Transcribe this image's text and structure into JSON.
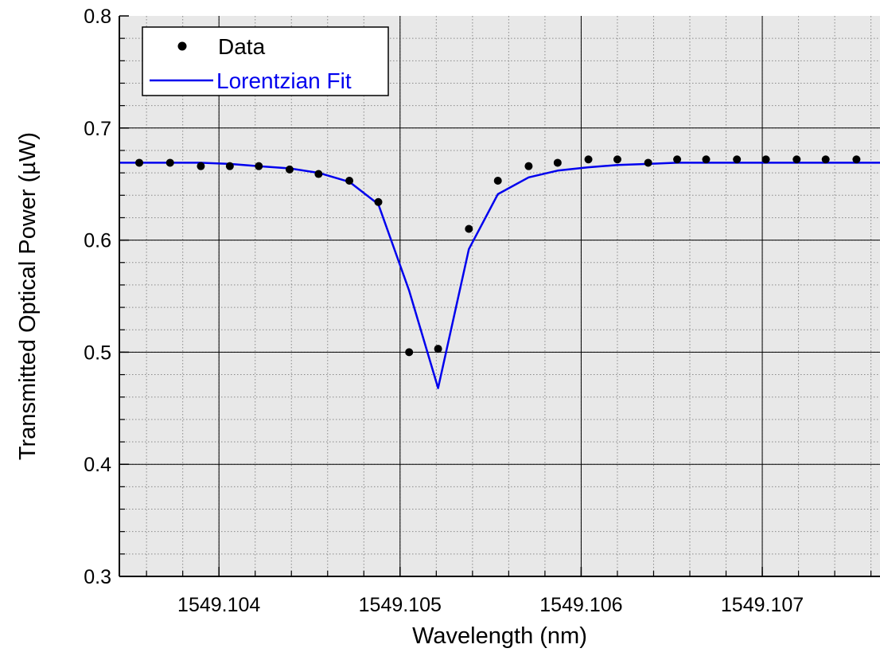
{
  "chart_data": {
    "type": "line",
    "xlabel": "Wavelength (nm)",
    "ylabel": "Transmitted Optical Power (µW)",
    "xlim": [
      1549.10345,
      1549.10765
    ],
    "ylim": [
      0.3,
      0.8
    ],
    "x_ticks": [
      1549.104,
      1549.105,
      1549.106,
      1549.107
    ],
    "x_tick_labels": [
      "1549.104",
      "1549.105",
      "1549.106",
      "1549.107"
    ],
    "y_ticks": [
      0.3,
      0.4,
      0.5,
      0.6,
      0.7,
      0.8
    ],
    "y_tick_labels": [
      "0.3",
      "0.4",
      "0.5",
      "0.6",
      "0.7",
      "0.8"
    ],
    "grid": true,
    "legend_position": "top-left",
    "series": [
      {
        "name": "Data",
        "style": "markers",
        "color": "#000000",
        "x": [
          1549.10356,
          1549.10373,
          1549.1039,
          1549.10406,
          1549.10422,
          1549.10439,
          1549.10455,
          1549.10472,
          1549.10488,
          1549.10505,
          1549.10521,
          1549.10538,
          1549.10554,
          1549.10571,
          1549.10587,
          1549.10604,
          1549.1062,
          1549.10637,
          1549.10653,
          1549.10669,
          1549.10686,
          1549.10702,
          1549.10719,
          1549.10735,
          1549.10752
        ],
        "y": [
          0.669,
          0.669,
          0.666,
          0.666,
          0.666,
          0.663,
          0.659,
          0.653,
          0.634,
          0.5,
          0.503,
          0.61,
          0.653,
          0.666,
          0.669,
          0.672,
          0.672,
          0.669,
          0.672,
          0.672,
          0.672,
          0.672,
          0.672,
          0.672,
          0.672
        ]
      },
      {
        "name": "Lorentzian Fit",
        "style": "line",
        "color": "#0000ee",
        "x": [
          1549.10345,
          1549.10356,
          1549.10373,
          1549.1039,
          1549.10406,
          1549.10422,
          1549.10439,
          1549.10455,
          1549.10472,
          1549.10488,
          1549.10505,
          1549.10521,
          1549.10538,
          1549.10554,
          1549.10571,
          1549.10587,
          1549.10604,
          1549.1062,
          1549.10637,
          1549.10653,
          1549.10669,
          1549.10686,
          1549.10702,
          1549.10719,
          1549.10735,
          1549.10752,
          1549.10765
        ],
        "y": [
          0.669,
          0.669,
          0.669,
          0.669,
          0.668,
          0.666,
          0.664,
          0.66,
          0.652,
          0.632,
          0.555,
          0.468,
          0.592,
          0.641,
          0.656,
          0.662,
          0.665,
          0.667,
          0.668,
          0.669,
          0.669,
          0.669,
          0.669,
          0.669,
          0.669,
          0.669,
          0.669
        ]
      }
    ]
  },
  "colors": {
    "plot_background": "#e8e8e8",
    "grid_major": "#000000",
    "grid_minor": "#8a8a8a",
    "legend_fit_text": "#0000ee"
  }
}
